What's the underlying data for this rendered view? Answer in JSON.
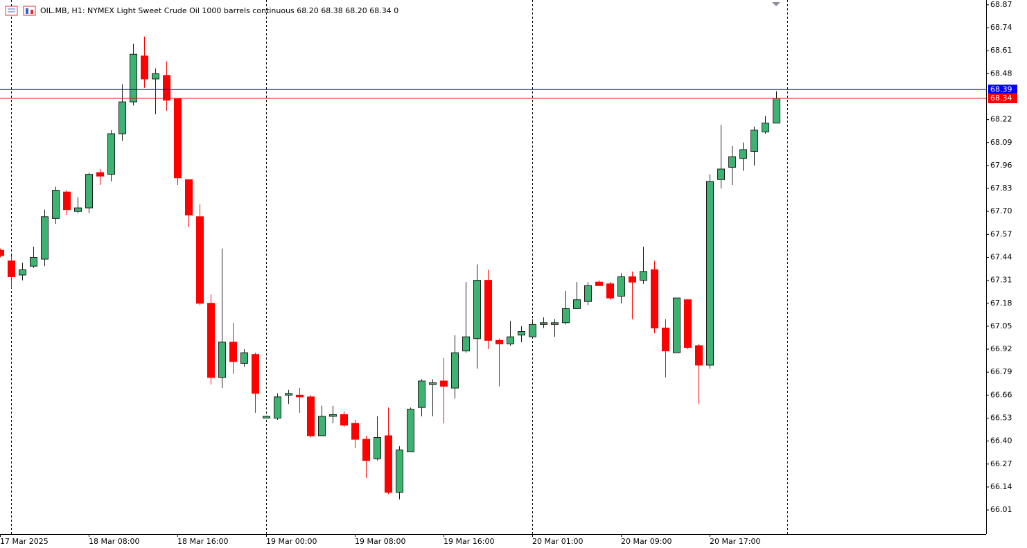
{
  "chart_data": {
    "type": "candlestick",
    "title": "OIL.MB, H1:  NYMEX Light Sweet Crude Oil 1000 barrels continuous  68.20 68.38 68.20 68.34  0",
    "categories": [
      "17 Mar 2025",
      null,
      null,
      null,
      null,
      null,
      null,
      null,
      "18 Mar 08:00",
      null,
      null,
      null,
      null,
      null,
      null,
      null,
      "18 Mar 16:00",
      null,
      null,
      null,
      null,
      null,
      null,
      null,
      "19 Mar 00:00",
      null,
      null,
      null,
      null,
      null,
      null,
      null,
      "19 Mar 08:00",
      null,
      null,
      null,
      null,
      null,
      null,
      null,
      "19 Mar 16:00",
      null,
      null,
      null,
      null,
      null,
      null,
      null,
      "20 Mar 01:00",
      null,
      null,
      null,
      null,
      null,
      null,
      null,
      "20 Mar 09:00",
      null,
      null,
      null,
      null,
      null,
      null,
      null,
      "20 Mar 17:00",
      null,
      null,
      null,
      null,
      null,
      null
    ],
    "open": [
      67.48,
      67.42,
      67.34,
      67.39,
      67.43,
      67.66,
      67.81,
      67.7,
      67.72,
      67.92,
      67.91,
      68.14,
      68.32,
      68.58,
      68.45,
      68.47,
      68.34,
      67.88,
      67.67,
      67.18,
      66.76,
      66.96,
      66.84,
      66.89,
      66.53,
      66.53,
      66.66,
      66.66,
      66.65,
      66.43,
      66.54,
      66.55,
      66.5,
      66.41,
      66.3,
      66.43,
      66.11,
      66.34,
      66.59,
      66.72,
      66.74,
      66.7,
      66.91,
      66.98,
      67.31,
      66.97,
      66.95,
      67.0,
      66.99,
      67.06,
      67.06,
      67.07,
      67.15,
      67.19,
      67.3,
      67.29,
      67.22,
      67.33,
      67.31,
      67.37,
      67.04,
      66.9,
      67.2,
      66.94,
      66.83,
      67.88,
      67.95,
      68.0,
      68.04,
      68.15,
      68.2
    ],
    "high": [
      67.49,
      67.45,
      67.41,
      67.5,
      67.71,
      67.84,
      67.82,
      67.78,
      67.92,
      67.94,
      68.16,
      68.42,
      68.65,
      68.69,
      68.51,
      68.55,
      68.34,
      67.88,
      67.74,
      67.23,
      67.49,
      67.07,
      66.92,
      66.9,
      66.54,
      66.67,
      66.69,
      66.7,
      66.66,
      66.6,
      66.6,
      66.57,
      66.52,
      66.43,
      66.54,
      66.59,
      66.37,
      66.59,
      66.75,
      66.75,
      66.87,
      67.0,
      67.3,
      67.4,
      67.37,
      66.98,
      67.08,
      67.05,
      67.09,
      67.1,
      67.09,
      67.25,
      67.3,
      67.3,
      67.31,
      67.3,
      67.35,
      67.36,
      67.5,
      67.42,
      67.09,
      67.21,
      67.2,
      66.95,
      67.91,
      68.19,
      68.07,
      68.09,
      68.18,
      68.24,
      68.38
    ],
    "low": [
      67.44,
      67.26,
      67.31,
      67.38,
      67.39,
      67.63,
      67.68,
      67.69,
      67.69,
      67.85,
      67.87,
      68.1,
      68.3,
      68.4,
      68.25,
      68.27,
      67.85,
      67.61,
      67.17,
      66.72,
      66.7,
      66.78,
      66.82,
      66.56,
      66.53,
      66.52,
      66.61,
      66.56,
      66.42,
      66.43,
      66.5,
      66.48,
      66.36,
      66.19,
      66.29,
      66.1,
      66.07,
      66.34,
      66.54,
      66.54,
      66.5,
      66.64,
      66.9,
      66.81,
      66.92,
      66.71,
      66.94,
      66.96,
      66.98,
      67.04,
      66.99,
      67.06,
      67.15,
      67.17,
      67.28,
      67.2,
      67.18,
      67.09,
      67.29,
      67.01,
      66.76,
      66.9,
      66.92,
      66.61,
      66.81,
      67.83,
      67.85,
      67.93,
      67.96,
      68.14,
      68.2
    ],
    "close": [
      67.45,
      67.33,
      67.37,
      67.44,
      67.67,
      67.82,
      67.71,
      67.72,
      67.91,
      67.9,
      68.14,
      68.32,
      68.59,
      68.45,
      68.48,
      68.33,
      67.89,
      67.68,
      67.18,
      66.76,
      66.96,
      66.85,
      66.9,
      66.67,
      66.54,
      66.65,
      66.67,
      66.65,
      66.43,
      66.54,
      66.55,
      66.49,
      66.41,
      66.29,
      66.42,
      66.11,
      66.35,
      66.58,
      66.74,
      66.73,
      66.71,
      66.9,
      66.99,
      67.31,
      66.97,
      66.95,
      66.99,
      67.02,
      67.06,
      67.07,
      67.07,
      67.15,
      67.2,
      67.28,
      67.28,
      67.21,
      67.33,
      67.3,
      67.36,
      67.04,
      66.91,
      67.21,
      66.93,
      66.83,
      67.87,
      67.94,
      68.01,
      68.05,
      68.16,
      68.2,
      68.34
    ],
    "up_color": "#3cb371",
    "down_color": "#ff0000",
    "ylim": [
      65.873,
      68.897
    ],
    "yticks": [
      66.01,
      66.14,
      66.27,
      {
        "value": 66.4,
        "label": "66.40"
      },
      66.53,
      66.66,
      66.79,
      66.92,
      67.05,
      67.18,
      67.31,
      67.44,
      67.57,
      {
        "value": 67.7,
        "label": "67.70"
      },
      67.83,
      67.96,
      68.09,
      68.22,
      68.48,
      68.61,
      68.74,
      68.87
    ],
    "price_lines": [
      {
        "value": 68.39,
        "color": "#0000ff"
      },
      {
        "value": 68.34,
        "color": "#ff0000"
      }
    ]
  }
}
